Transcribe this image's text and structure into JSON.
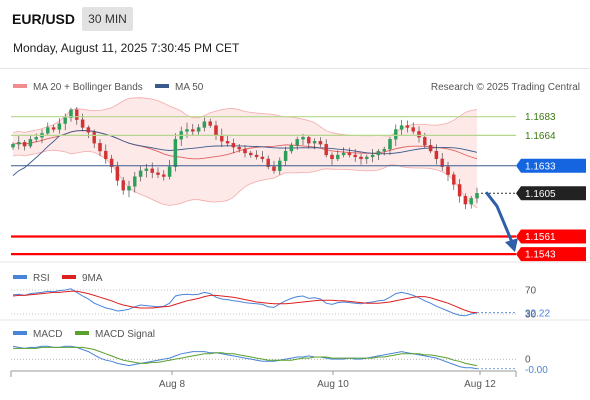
{
  "header": {
    "symbol": "EUR/USD",
    "timeframe": "30 MIN",
    "datetime": "Monday, August 11, 2025 7:30:45 PM CET"
  },
  "legend": {
    "bollinger": "MA 20 + Bollinger Bands",
    "ma50": "MA 50",
    "copyright": "Research © 2025 Trading Central"
  },
  "colors": {
    "up_candle": "#2e9e5b",
    "down_candle": "#d23232",
    "bollinger": "#f08c8c",
    "bollinger_fill": "#fde2e2",
    "ma50": "#3a5a8c",
    "resistance": "#b5d68c",
    "support": "#ff0000",
    "current_price_tag": "#222222",
    "pivot_tag": "#1565e0",
    "arrow": "#2f5fa8",
    "rsi": "#4a84d8",
    "rsi_ma": "#dd2020",
    "macd": "#4a84d8",
    "macd_signal": "#5aa02c"
  },
  "chart_data": [
    {
      "type": "candlestick",
      "title": "EUR/USD",
      "ylim": [
        1.1535,
        1.17
      ],
      "x_ticks": [
        "Aug 8",
        "Aug 10",
        "Aug 12"
      ],
      "levels": [
        {
          "value": 1.1683,
          "label": "1.1683",
          "kind": "resistance"
        },
        {
          "value": 1.1664,
          "label": "1.1664",
          "kind": "resistance"
        },
        {
          "value": 1.1633,
          "label": "1.1633",
          "kind": "pivot"
        },
        {
          "value": 1.1605,
          "label": "1.1605",
          "kind": "last"
        },
        {
          "value": 1.1561,
          "label": "1.1561",
          "kind": "support"
        },
        {
          "value": 1.1543,
          "label": "1.1543",
          "kind": "support"
        }
      ],
      "close": [
        1.1655,
        1.1657,
        1.1653,
        1.166,
        1.1662,
        1.1666,
        1.1672,
        1.167,
        1.1676,
        1.1682,
        1.169,
        1.168,
        1.1672,
        1.1667,
        1.1656,
        1.1648,
        1.164,
        1.1632,
        1.1618,
        1.1608,
        1.1612,
        1.1622,
        1.1628,
        1.163,
        1.1626,
        1.1624,
        1.1622,
        1.1632,
        1.166,
        1.1668,
        1.167,
        1.1668,
        1.1672,
        1.1678,
        1.1674,
        1.1664,
        1.1658,
        1.1656,
        1.1652,
        1.165,
        1.1646,
        1.1644,
        1.1642,
        1.164,
        1.1632,
        1.1628,
        1.1638,
        1.1648,
        1.1654,
        1.166,
        1.1662,
        1.1656,
        1.1658,
        1.1655,
        1.1644,
        1.164,
        1.1644,
        1.1646,
        1.1644,
        1.1642,
        1.164,
        1.1642,
        1.1644,
        1.1648,
        1.165,
        1.166,
        1.167,
        1.1674,
        1.1672,
        1.1668,
        1.1662,
        1.1654,
        1.1648,
        1.164,
        1.1632,
        1.1624,
        1.1614,
        1.1602,
        1.1594,
        1.16,
        1.1605
      ]
    },
    {
      "type": "line",
      "series": [
        {
          "name": "RSI",
          "values": [
            62,
            63,
            61,
            64,
            65,
            66,
            68,
            67,
            69,
            70,
            72,
            66,
            60,
            55,
            48,
            44,
            40,
            38,
            35,
            36,
            38,
            42,
            45,
            44,
            43,
            42,
            43,
            48,
            60,
            62,
            63,
            62,
            63,
            66,
            64,
            58,
            55,
            54,
            52,
            51,
            49,
            48,
            47,
            46,
            42,
            41,
            47,
            52,
            56,
            59,
            60,
            56,
            57,
            55,
            48,
            46,
            49,
            50,
            49,
            48,
            47,
            49,
            50,
            52,
            53,
            58,
            64,
            66,
            64,
            61,
            57,
            52,
            48,
            43,
            39,
            35,
            31,
            28,
            27,
            30,
            32.22
          ]
        },
        {
          "name": "9MA",
          "values": [
            60,
            61,
            61,
            62,
            63,
            64,
            65,
            66,
            66,
            67,
            68,
            68,
            66,
            64,
            61,
            58,
            55,
            52,
            48,
            45,
            43,
            41,
            40,
            40,
            40,
            41,
            42,
            43,
            46,
            49,
            52,
            54,
            56,
            59,
            61,
            61,
            60,
            59,
            58,
            56,
            54,
            52,
            50,
            49,
            48,
            47,
            47,
            47,
            48,
            49,
            50,
            51,
            52,
            53,
            53,
            53,
            52,
            52,
            51,
            50,
            49,
            48,
            48,
            48,
            49,
            50,
            52,
            54,
            56,
            58,
            59,
            59,
            57,
            54,
            51,
            48,
            44,
            40,
            36,
            33,
            32
          ]
        }
      ],
      "ylim": [
        20,
        80
      ],
      "ticks": [
        {
          "value": 70,
          "label": "70"
        },
        {
          "value": 30,
          "label": "30"
        }
      ],
      "last_value_label": "32.22"
    },
    {
      "type": "line",
      "series": [
        {
          "name": "MACD",
          "values": [
            0.0012,
            0.0011,
            0.001,
            0.0011,
            0.0011,
            0.0012,
            0.0012,
            0.0011,
            0.0011,
            0.0012,
            0.0012,
            0.0011,
            0.0009,
            0.0007,
            0.0004,
            0.0001,
            -0.0001,
            -0.0002,
            -0.0004,
            -0.0005,
            -0.0006,
            -0.0005,
            -0.0004,
            -0.0003,
            -0.0002,
            -0.0001,
            0.0,
            0.0001,
            0.0003,
            0.0005,
            0.0006,
            0.0007,
            0.0007,
            0.0007,
            0.0006,
            0.0006,
            0.0005,
            0.0004,
            0.0003,
            0.0002,
            0.0001,
            0.0,
            -0.0001,
            -0.0002,
            -0.0002,
            -0.0002,
            -0.0001,
            0.0,
            0.0001,
            0.0002,
            0.0002,
            0.0003,
            0.0002,
            0.0002,
            0.0001,
            0.0,
            0.0,
            0.0,
            0.0001,
            0.0,
            0.0,
            0.0001,
            0.0002,
            0.0003,
            0.0004,
            0.0005,
            0.0006,
            0.0007,
            0.0006,
            0.0005,
            0.0004,
            0.0003,
            0.0002,
            0.0001,
            -0.0001,
            -0.0003,
            -0.0005,
            -0.0007,
            -0.0008,
            -0.0008,
            -0.0009
          ]
        },
        {
          "name": "MACD Signal",
          "values": [
            0.001,
            0.001,
            0.001,
            0.001,
            0.001,
            0.0011,
            0.0011,
            0.0011,
            0.0011,
            0.0011,
            0.0011,
            0.0011,
            0.0011,
            0.001,
            0.0009,
            0.0007,
            0.0005,
            0.0003,
            0.0001,
            -0.0001,
            -0.0002,
            -0.0003,
            -0.0004,
            -0.0004,
            -0.0003,
            -0.0003,
            -0.0002,
            -0.0001,
            0.0,
            0.0001,
            0.0002,
            0.0003,
            0.0004,
            0.0005,
            0.0005,
            0.0006,
            0.0006,
            0.0005,
            0.0005,
            0.0004,
            0.0003,
            0.0002,
            0.0001,
            0.0,
            -0.0001,
            -0.0001,
            -0.0001,
            -0.0001,
            -0.0001,
            0.0,
            0.0001,
            0.0001,
            0.0002,
            0.0002,
            0.0002,
            0.0001,
            0.0001,
            0.0001,
            0.0001,
            0.0001,
            0.0001,
            0.0001,
            0.0001,
            0.0002,
            0.0002,
            0.0003,
            0.0004,
            0.0005,
            0.0005,
            0.0005,
            0.0005,
            0.0004,
            0.0004,
            0.0003,
            0.0002,
            0.0001,
            -0.0001,
            -0.0002,
            -0.0004,
            -0.0005,
            -0.0006
          ]
        }
      ],
      "ylim": [
        -0.0012,
        0.0016
      ],
      "ticks": [
        {
          "value": 0,
          "label": "0"
        }
      ],
      "last_value_label": "-0.00"
    }
  ]
}
